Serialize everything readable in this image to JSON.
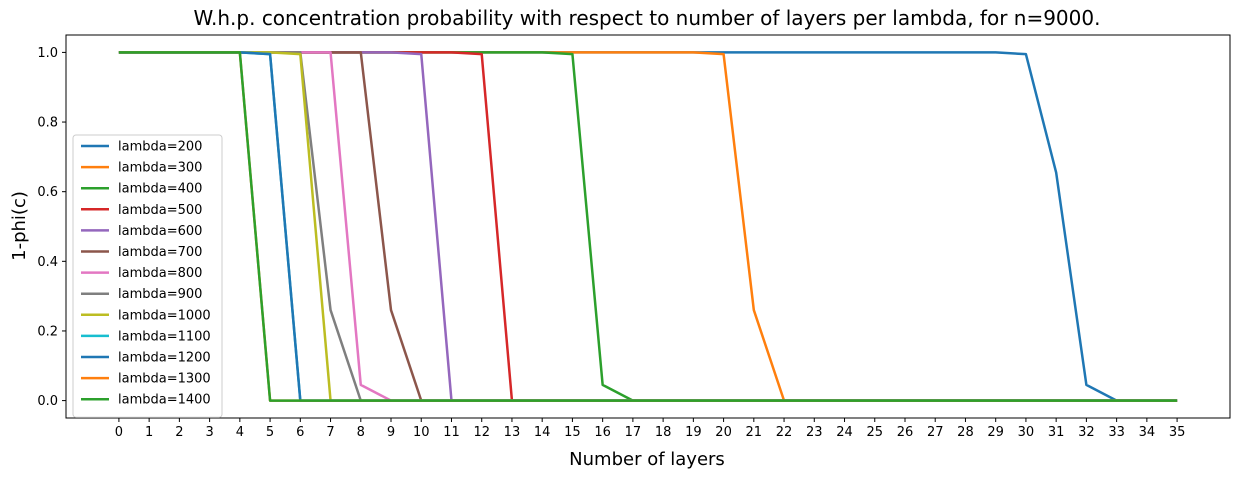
{
  "chart_data": {
    "type": "line",
    "title": "W.h.p. concentration probability with respect to number of layers per lambda, for n=9000.",
    "xlabel": "Number of layers",
    "ylabel": "1-phi(c)",
    "xlim": [
      -1.75,
      36.75
    ],
    "ylim": [
      -0.05,
      1.05
    ],
    "xticks": [
      0,
      1,
      2,
      3,
      4,
      5,
      6,
      7,
      8,
      9,
      10,
      11,
      12,
      13,
      14,
      15,
      16,
      17,
      18,
      19,
      20,
      21,
      22,
      23,
      24,
      25,
      26,
      27,
      28,
      29,
      30,
      31,
      32,
      33,
      34,
      35
    ],
    "yticks": [
      0.0,
      0.2,
      0.4,
      0.6,
      0.8,
      1.0
    ],
    "ytick_labels": [
      "0.0",
      "0.2",
      "0.4",
      "0.6",
      "0.8",
      "1.0"
    ],
    "grid": false,
    "legend_position": "center-left",
    "x": [
      0,
      1,
      2,
      3,
      4,
      5,
      6,
      7,
      8,
      9,
      10,
      11,
      12,
      13,
      14,
      15,
      16,
      17,
      18,
      19,
      20,
      21,
      22,
      23,
      24,
      25,
      26,
      27,
      28,
      29,
      30,
      31,
      32,
      33,
      34,
      35
    ],
    "series": [
      {
        "name": "lambda=200",
        "color": "#1f77b4",
        "values": [
          1,
          1,
          1,
          1,
          1,
          1,
          1,
          1,
          1,
          1,
          1,
          1,
          1,
          1,
          1,
          1,
          1,
          1,
          1,
          1,
          1,
          1,
          1,
          1,
          1,
          1,
          1,
          1,
          1,
          1,
          0.995,
          0.655,
          0.045,
          0,
          0,
          0
        ]
      },
      {
        "name": "lambda=300",
        "color": "#ff7f0e",
        "values": [
          1,
          1,
          1,
          1,
          1,
          1,
          1,
          1,
          1,
          1,
          1,
          1,
          1,
          1,
          1,
          1,
          1,
          1,
          1,
          1,
          0.995,
          0.26,
          0,
          0,
          0,
          0,
          0,
          0,
          0,
          0,
          0,
          0,
          0,
          0,
          0,
          0
        ]
      },
      {
        "name": "lambda=400",
        "color": "#2ca02c",
        "values": [
          1,
          1,
          1,
          1,
          1,
          1,
          1,
          1,
          1,
          1,
          1,
          1,
          1,
          1,
          1,
          0.995,
          0.045,
          0,
          0,
          0,
          0,
          0,
          0,
          0,
          0,
          0,
          0,
          0,
          0,
          0,
          0,
          0,
          0,
          0,
          0,
          0
        ]
      },
      {
        "name": "lambda=500",
        "color": "#d62728",
        "values": [
          1,
          1,
          1,
          1,
          1,
          1,
          1,
          1,
          1,
          1,
          1,
          1,
          0.995,
          0,
          0,
          0,
          0,
          0,
          0,
          0,
          0,
          0,
          0,
          0,
          0,
          0,
          0,
          0,
          0,
          0,
          0,
          0,
          0,
          0,
          0,
          0
        ]
      },
      {
        "name": "lambda=600",
        "color": "#9467bd",
        "values": [
          1,
          1,
          1,
          1,
          1,
          1,
          1,
          1,
          1,
          1,
          0.995,
          0,
          0,
          0,
          0,
          0,
          0,
          0,
          0,
          0,
          0,
          0,
          0,
          0,
          0,
          0,
          0,
          0,
          0,
          0,
          0,
          0,
          0,
          0,
          0,
          0
        ]
      },
      {
        "name": "lambda=700",
        "color": "#8c564b",
        "values": [
          1,
          1,
          1,
          1,
          1,
          1,
          1,
          1,
          1,
          0.26,
          0,
          0,
          0,
          0,
          0,
          0,
          0,
          0,
          0,
          0,
          0,
          0,
          0,
          0,
          0,
          0,
          0,
          0,
          0,
          0,
          0,
          0,
          0,
          0,
          0,
          0
        ]
      },
      {
        "name": "lambda=800",
        "color": "#e377c2",
        "values": [
          1,
          1,
          1,
          1,
          1,
          1,
          1,
          1,
          0.045,
          0,
          0,
          0,
          0,
          0,
          0,
          0,
          0,
          0,
          0,
          0,
          0,
          0,
          0,
          0,
          0,
          0,
          0,
          0,
          0,
          0,
          0,
          0,
          0,
          0,
          0,
          0
        ]
      },
      {
        "name": "lambda=900",
        "color": "#7f7f7f",
        "values": [
          1,
          1,
          1,
          1,
          1,
          1,
          1,
          0.26,
          0,
          0,
          0,
          0,
          0,
          0,
          0,
          0,
          0,
          0,
          0,
          0,
          0,
          0,
          0,
          0,
          0,
          0,
          0,
          0,
          0,
          0,
          0,
          0,
          0,
          0,
          0,
          0
        ]
      },
      {
        "name": "lambda=1000",
        "color": "#bcbd22",
        "values": [
          1,
          1,
          1,
          1,
          1,
          1,
          0.995,
          0,
          0,
          0,
          0,
          0,
          0,
          0,
          0,
          0,
          0,
          0,
          0,
          0,
          0,
          0,
          0,
          0,
          0,
          0,
          0,
          0,
          0,
          0,
          0,
          0,
          0,
          0,
          0,
          0
        ]
      },
      {
        "name": "lambda=1100",
        "color": "#17becf",
        "values": [
          1,
          1,
          1,
          1,
          1,
          0.995,
          0,
          0,
          0,
          0,
          0,
          0,
          0,
          0,
          0,
          0,
          0,
          0,
          0,
          0,
          0,
          0,
          0,
          0,
          0,
          0,
          0,
          0,
          0,
          0,
          0,
          0,
          0,
          0,
          0,
          0
        ]
      },
      {
        "name": "lambda=1200",
        "color": "#1f77b4",
        "values": [
          1,
          1,
          1,
          1,
          1,
          0.995,
          0,
          0,
          0,
          0,
          0,
          0,
          0,
          0,
          0,
          0,
          0,
          0,
          0,
          0,
          0,
          0,
          0,
          0,
          0,
          0,
          0,
          0,
          0,
          0,
          0,
          0,
          0,
          0,
          0,
          0
        ]
      },
      {
        "name": "lambda=1300",
        "color": "#ff7f0e",
        "values": [
          1,
          1,
          1,
          1,
          1,
          0,
          0,
          0,
          0,
          0,
          0,
          0,
          0,
          0,
          0,
          0,
          0,
          0,
          0,
          0,
          0,
          0,
          0,
          0,
          0,
          0,
          0,
          0,
          0,
          0,
          0,
          0,
          0,
          0,
          0,
          0
        ]
      },
      {
        "name": "lambda=1400",
        "color": "#2ca02c",
        "values": [
          1,
          1,
          1,
          1,
          1,
          0,
          0,
          0,
          0,
          0,
          0,
          0,
          0,
          0,
          0,
          0,
          0,
          0,
          0,
          0,
          0,
          0,
          0,
          0,
          0,
          0,
          0,
          0,
          0,
          0,
          0,
          0,
          0,
          0,
          0,
          0
        ]
      }
    ]
  }
}
